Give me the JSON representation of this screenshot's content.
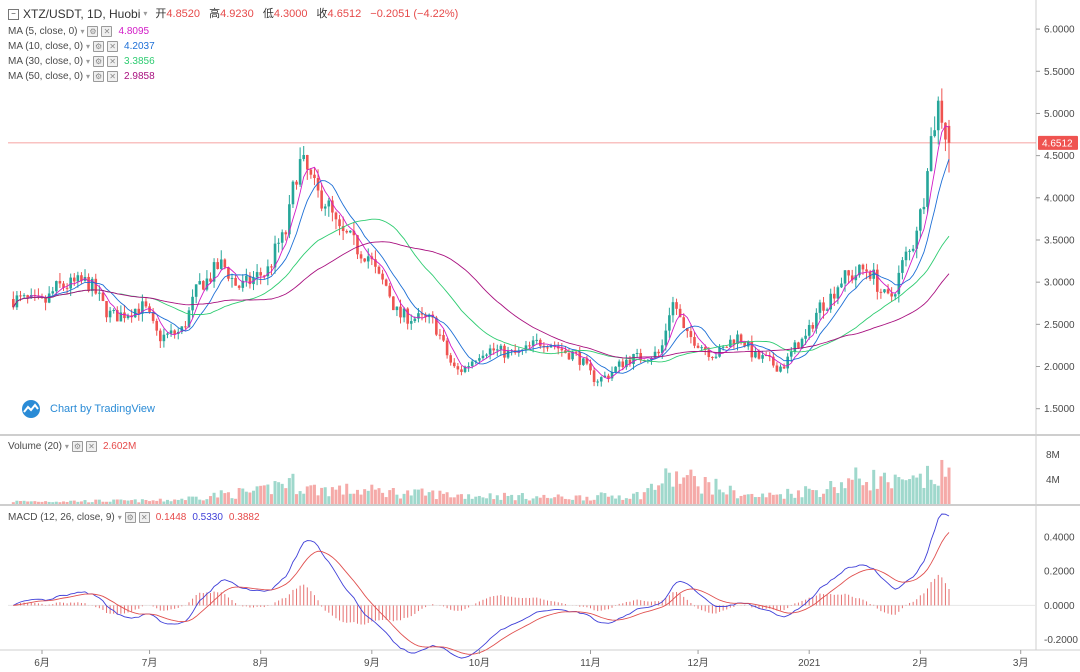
{
  "header": {
    "symbol": "XTZ/USDT, 1D, Huobi",
    "open_label": "开",
    "open": "4.8520",
    "high_label": "高",
    "high": "4.9230",
    "low_label": "低",
    "low": "4.3000",
    "close_label": "收",
    "close": "4.6512",
    "change": "−0.2051 (−4.22%)"
  },
  "indicators": [
    {
      "label": "MA (5, close, 0)",
      "value": "4.8095",
      "color": "#d21bc7"
    },
    {
      "label": "MA (10, close, 0)",
      "value": "4.2037",
      "color": "#1d6fd6"
    },
    {
      "label": "MA (30, close, 0)",
      "value": "3.3856",
      "color": "#2ecc71"
    },
    {
      "label": "MA (50, close, 0)",
      "value": "2.9858",
      "color": "#a8107f"
    }
  ],
  "volume_legend": {
    "label": "Volume (20)",
    "value": "2.602M"
  },
  "macd_legend": {
    "label": "MACD (12, 26, close, 9)",
    "v1": "0.1448",
    "v2": "0.5330",
    "v3": "0.3882"
  },
  "branding": {
    "text": "Chart by TradingView"
  },
  "colors": {
    "up": "#26a69a",
    "down": "#ef5350",
    "ma5": "#d21bc7",
    "ma10": "#1d6fd6",
    "ma30": "#2ecc71",
    "ma50": "#a8107f",
    "macd": "#3f3fd8",
    "signal": "#e0504f"
  },
  "chart_data": {
    "type": "line",
    "title": "XTZ/USDT, 1D, Huobi",
    "price_axis_ticks": [
      "6.0000",
      "5.5000",
      "5.0000",
      "4.5000",
      "4.0000",
      "3.5000",
      "3.0000",
      "2.5000",
      "2.0000",
      "1.5000"
    ],
    "price_range": [
      1.2,
      6.25
    ],
    "last_price_label": "4.6512",
    "volume_axis_ticks": [
      "8M",
      "4M"
    ],
    "volume_range": [
      0,
      11
    ],
    "macd_axis_ticks": [
      "0.4000",
      "0.2000",
      "0.0000",
      "-0.2000"
    ],
    "macd_range": [
      -0.26,
      0.58
    ],
    "x_labels": [
      "6月",
      "7月",
      "8月",
      "9月",
      "10月",
      "11月",
      "12月",
      "2021",
      "2月",
      "3月"
    ],
    "x_label_days": [
      0,
      30,
      61,
      92,
      122,
      153,
      183,
      214,
      245,
      273
    ],
    "price_anchors": [
      [
        -8,
        2.8
      ],
      [
        0,
        2.75
      ],
      [
        5,
        2.95
      ],
      [
        12,
        3.0
      ],
      [
        20,
        2.6
      ],
      [
        28,
        2.7
      ],
      [
        33,
        2.35
      ],
      [
        38,
        2.4
      ],
      [
        45,
        3.0
      ],
      [
        50,
        3.2
      ],
      [
        55,
        2.95
      ],
      [
        62,
        3.1
      ],
      [
        67,
        3.5
      ],
      [
        72,
        4.4
      ],
      [
        78,
        4.0
      ],
      [
        84,
        3.55
      ],
      [
        90,
        3.35
      ],
      [
        95,
        3.0
      ],
      [
        100,
        2.6
      ],
      [
        108,
        2.55
      ],
      [
        116,
        1.95
      ],
      [
        124,
        2.2
      ],
      [
        132,
        2.15
      ],
      [
        140,
        2.3
      ],
      [
        148,
        2.15
      ],
      [
        155,
        1.85
      ],
      [
        165,
        2.1
      ],
      [
        172,
        2.15
      ],
      [
        176,
        2.75
      ],
      [
        180,
        2.35
      ],
      [
        188,
        2.15
      ],
      [
        194,
        2.35
      ],
      [
        200,
        2.1
      ],
      [
        206,
        2.0
      ],
      [
        212,
        2.3
      ],
      [
        218,
        2.75
      ],
      [
        224,
        3.05
      ],
      [
        230,
        3.15
      ],
      [
        236,
        2.8
      ],
      [
        242,
        3.35
      ],
      [
        245,
        3.8
      ],
      [
        248,
        4.7
      ],
      [
        250,
        5.1
      ],
      [
        253,
        4.6512
      ]
    ],
    "volume_anchors": [
      [
        -8,
        0.4
      ],
      [
        30,
        0.5
      ],
      [
        60,
        1.8
      ],
      [
        68,
        3.4
      ],
      [
        76,
        2.3
      ],
      [
        92,
        2.0
      ],
      [
        105,
        1.6
      ],
      [
        120,
        1.3
      ],
      [
        145,
        1.0
      ],
      [
        165,
        1.3
      ],
      [
        176,
        4.0
      ],
      [
        200,
        1.2
      ],
      [
        215,
        2.1
      ],
      [
        230,
        4.0
      ],
      [
        240,
        3.0
      ],
      [
        253,
        4.6
      ]
    ],
    "series": [
      {
        "name": "MA (5, close, 0)",
        "last": 4.8095
      },
      {
        "name": "MA (10, close, 0)",
        "last": 4.2037
      },
      {
        "name": "MA (30, close, 0)",
        "last": 3.3856
      },
      {
        "name": "MA (50, close, 0)",
        "last": 2.9858
      },
      {
        "name": "MACD (12, 26, close, 9)",
        "values": [
          0.1448,
          0.533,
          0.3882
        ]
      }
    ]
  }
}
